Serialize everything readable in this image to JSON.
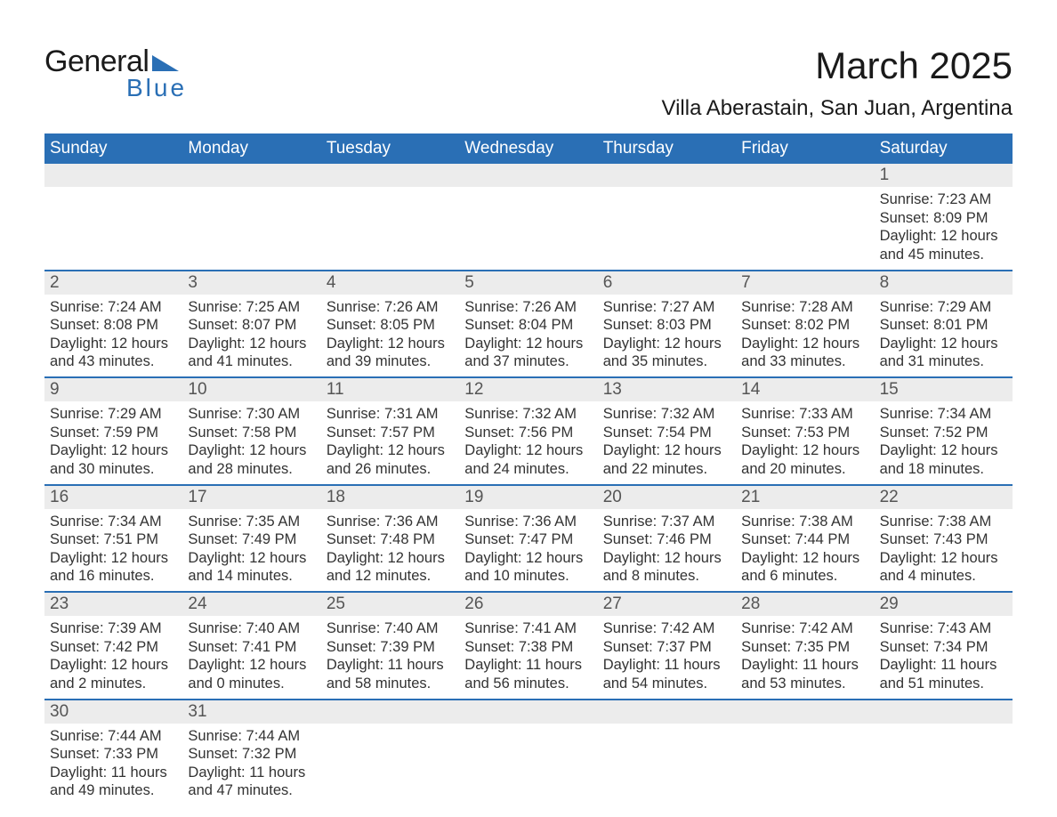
{
  "brand": {
    "word1": "General",
    "word2": "Blue",
    "triangle_color": "#2a6fb5"
  },
  "title": "March 2025",
  "location": "Villa Aberastain, San Juan, Argentina",
  "colors": {
    "header_bg": "#2a6fb5",
    "header_text": "#ffffff",
    "daystrip_bg": "#ececec",
    "row_border": "#2a6fb5",
    "body_text": "#333333",
    "page_bg": "#ffffff"
  },
  "layout": {
    "columns": 7,
    "daynum_fontsize": 19,
    "detail_fontsize": 16.5,
    "weekday_fontsize": 19,
    "title_fontsize": 42,
    "location_fontsize": 24
  },
  "weekdays": [
    "Sunday",
    "Monday",
    "Tuesday",
    "Wednesday",
    "Thursday",
    "Friday",
    "Saturday"
  ],
  "weeks": [
    [
      null,
      null,
      null,
      null,
      null,
      null,
      {
        "n": "1",
        "sunrise": "Sunrise: 7:23 AM",
        "sunset": "Sunset: 8:09 PM",
        "dl1": "Daylight: 12 hours",
        "dl2": "and 45 minutes."
      }
    ],
    [
      {
        "n": "2",
        "sunrise": "Sunrise: 7:24 AM",
        "sunset": "Sunset: 8:08 PM",
        "dl1": "Daylight: 12 hours",
        "dl2": "and 43 minutes."
      },
      {
        "n": "3",
        "sunrise": "Sunrise: 7:25 AM",
        "sunset": "Sunset: 8:07 PM",
        "dl1": "Daylight: 12 hours",
        "dl2": "and 41 minutes."
      },
      {
        "n": "4",
        "sunrise": "Sunrise: 7:26 AM",
        "sunset": "Sunset: 8:05 PM",
        "dl1": "Daylight: 12 hours",
        "dl2": "and 39 minutes."
      },
      {
        "n": "5",
        "sunrise": "Sunrise: 7:26 AM",
        "sunset": "Sunset: 8:04 PM",
        "dl1": "Daylight: 12 hours",
        "dl2": "and 37 minutes."
      },
      {
        "n": "6",
        "sunrise": "Sunrise: 7:27 AM",
        "sunset": "Sunset: 8:03 PM",
        "dl1": "Daylight: 12 hours",
        "dl2": "and 35 minutes."
      },
      {
        "n": "7",
        "sunrise": "Sunrise: 7:28 AM",
        "sunset": "Sunset: 8:02 PM",
        "dl1": "Daylight: 12 hours",
        "dl2": "and 33 minutes."
      },
      {
        "n": "8",
        "sunrise": "Sunrise: 7:29 AM",
        "sunset": "Sunset: 8:01 PM",
        "dl1": "Daylight: 12 hours",
        "dl2": "and 31 minutes."
      }
    ],
    [
      {
        "n": "9",
        "sunrise": "Sunrise: 7:29 AM",
        "sunset": "Sunset: 7:59 PM",
        "dl1": "Daylight: 12 hours",
        "dl2": "and 30 minutes."
      },
      {
        "n": "10",
        "sunrise": "Sunrise: 7:30 AM",
        "sunset": "Sunset: 7:58 PM",
        "dl1": "Daylight: 12 hours",
        "dl2": "and 28 minutes."
      },
      {
        "n": "11",
        "sunrise": "Sunrise: 7:31 AM",
        "sunset": "Sunset: 7:57 PM",
        "dl1": "Daylight: 12 hours",
        "dl2": "and 26 minutes."
      },
      {
        "n": "12",
        "sunrise": "Sunrise: 7:32 AM",
        "sunset": "Sunset: 7:56 PM",
        "dl1": "Daylight: 12 hours",
        "dl2": "and 24 minutes."
      },
      {
        "n": "13",
        "sunrise": "Sunrise: 7:32 AM",
        "sunset": "Sunset: 7:54 PM",
        "dl1": "Daylight: 12 hours",
        "dl2": "and 22 minutes."
      },
      {
        "n": "14",
        "sunrise": "Sunrise: 7:33 AM",
        "sunset": "Sunset: 7:53 PM",
        "dl1": "Daylight: 12 hours",
        "dl2": "and 20 minutes."
      },
      {
        "n": "15",
        "sunrise": "Sunrise: 7:34 AM",
        "sunset": "Sunset: 7:52 PM",
        "dl1": "Daylight: 12 hours",
        "dl2": "and 18 minutes."
      }
    ],
    [
      {
        "n": "16",
        "sunrise": "Sunrise: 7:34 AM",
        "sunset": "Sunset: 7:51 PM",
        "dl1": "Daylight: 12 hours",
        "dl2": "and 16 minutes."
      },
      {
        "n": "17",
        "sunrise": "Sunrise: 7:35 AM",
        "sunset": "Sunset: 7:49 PM",
        "dl1": "Daylight: 12 hours",
        "dl2": "and 14 minutes."
      },
      {
        "n": "18",
        "sunrise": "Sunrise: 7:36 AM",
        "sunset": "Sunset: 7:48 PM",
        "dl1": "Daylight: 12 hours",
        "dl2": "and 12 minutes."
      },
      {
        "n": "19",
        "sunrise": "Sunrise: 7:36 AM",
        "sunset": "Sunset: 7:47 PM",
        "dl1": "Daylight: 12 hours",
        "dl2": "and 10 minutes."
      },
      {
        "n": "20",
        "sunrise": "Sunrise: 7:37 AM",
        "sunset": "Sunset: 7:46 PM",
        "dl1": "Daylight: 12 hours",
        "dl2": "and 8 minutes."
      },
      {
        "n": "21",
        "sunrise": "Sunrise: 7:38 AM",
        "sunset": "Sunset: 7:44 PM",
        "dl1": "Daylight: 12 hours",
        "dl2": "and 6 minutes."
      },
      {
        "n": "22",
        "sunrise": "Sunrise: 7:38 AM",
        "sunset": "Sunset: 7:43 PM",
        "dl1": "Daylight: 12 hours",
        "dl2": "and 4 minutes."
      }
    ],
    [
      {
        "n": "23",
        "sunrise": "Sunrise: 7:39 AM",
        "sunset": "Sunset: 7:42 PM",
        "dl1": "Daylight: 12 hours",
        "dl2": "and 2 minutes."
      },
      {
        "n": "24",
        "sunrise": "Sunrise: 7:40 AM",
        "sunset": "Sunset: 7:41 PM",
        "dl1": "Daylight: 12 hours",
        "dl2": "and 0 minutes."
      },
      {
        "n": "25",
        "sunrise": "Sunrise: 7:40 AM",
        "sunset": "Sunset: 7:39 PM",
        "dl1": "Daylight: 11 hours",
        "dl2": "and 58 minutes."
      },
      {
        "n": "26",
        "sunrise": "Sunrise: 7:41 AM",
        "sunset": "Sunset: 7:38 PM",
        "dl1": "Daylight: 11 hours",
        "dl2": "and 56 minutes."
      },
      {
        "n": "27",
        "sunrise": "Sunrise: 7:42 AM",
        "sunset": "Sunset: 7:37 PM",
        "dl1": "Daylight: 11 hours",
        "dl2": "and 54 minutes."
      },
      {
        "n": "28",
        "sunrise": "Sunrise: 7:42 AM",
        "sunset": "Sunset: 7:35 PM",
        "dl1": "Daylight: 11 hours",
        "dl2": "and 53 minutes."
      },
      {
        "n": "29",
        "sunrise": "Sunrise: 7:43 AM",
        "sunset": "Sunset: 7:34 PM",
        "dl1": "Daylight: 11 hours",
        "dl2": "and 51 minutes."
      }
    ],
    [
      {
        "n": "30",
        "sunrise": "Sunrise: 7:44 AM",
        "sunset": "Sunset: 7:33 PM",
        "dl1": "Daylight: 11 hours",
        "dl2": "and 49 minutes."
      },
      {
        "n": "31",
        "sunrise": "Sunrise: 7:44 AM",
        "sunset": "Sunset: 7:32 PM",
        "dl1": "Daylight: 11 hours",
        "dl2": "and 47 minutes."
      },
      null,
      null,
      null,
      null,
      null
    ]
  ]
}
